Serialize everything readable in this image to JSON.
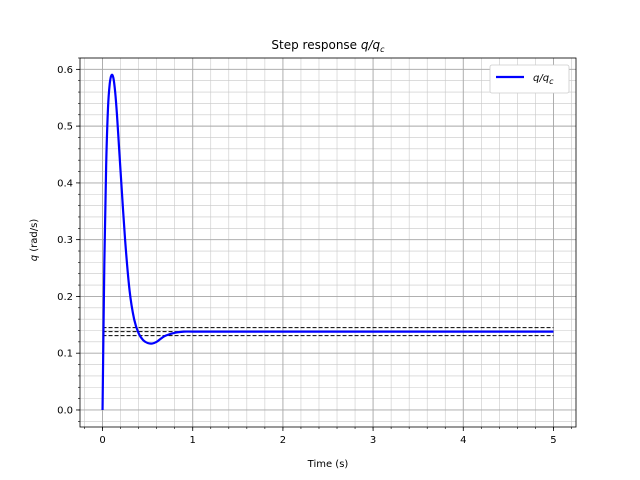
{
  "chart_data": {
    "type": "line",
    "title_prefix": "Step response ",
    "title_math": "q/q",
    "title_sub": "c",
    "xlabel": "Time (s)",
    "ylabel_math": "q",
    "ylabel_rest": " (rad/s)",
    "xlim": [
      -0.25,
      5.25
    ],
    "ylim": [
      -0.03,
      0.62
    ],
    "x_ticks": [
      0,
      1,
      2,
      3,
      4,
      5
    ],
    "x_tick_labels": [
      "0",
      "1",
      "2",
      "3",
      "4",
      "5"
    ],
    "y_ticks": [
      0.0,
      0.1,
      0.2,
      0.3,
      0.4,
      0.5,
      0.6
    ],
    "y_tick_labels": [
      "0.0",
      "0.1",
      "0.2",
      "0.3",
      "0.4",
      "0.5",
      "0.6"
    ],
    "grid": "major and minor",
    "legend_position": "top-right",
    "series": [
      {
        "name_math": "q/q",
        "name_sub": "c",
        "color": "#0000ff",
        "x": [
          0,
          0.02,
          0.04,
          0.06,
          0.08,
          0.1,
          0.12,
          0.14,
          0.16,
          0.18,
          0.2,
          0.25,
          0.3,
          0.35,
          0.4,
          0.45,
          0.5,
          0.55,
          0.6,
          0.65,
          0.7,
          0.8,
          0.9,
          1.0,
          1.2,
          1.5,
          2.0,
          3.0,
          4.0,
          5.0
        ],
        "y": [
          0.0,
          0.26,
          0.43,
          0.53,
          0.575,
          0.59,
          0.585,
          0.56,
          0.52,
          0.47,
          0.42,
          0.3,
          0.21,
          0.16,
          0.135,
          0.123,
          0.118,
          0.117,
          0.12,
          0.126,
          0.131,
          0.136,
          0.138,
          0.138,
          0.138,
          0.138,
          0.138,
          0.138,
          0.138,
          0.138
        ]
      }
    ],
    "reference_lines": [
      {
        "y": 0.145,
        "color": "#000000",
        "style": "dashed"
      },
      {
        "y": 0.138,
        "color": "#000000",
        "style": "dashed"
      },
      {
        "y": 0.131,
        "color": "#000000",
        "style": "dashed"
      }
    ]
  }
}
